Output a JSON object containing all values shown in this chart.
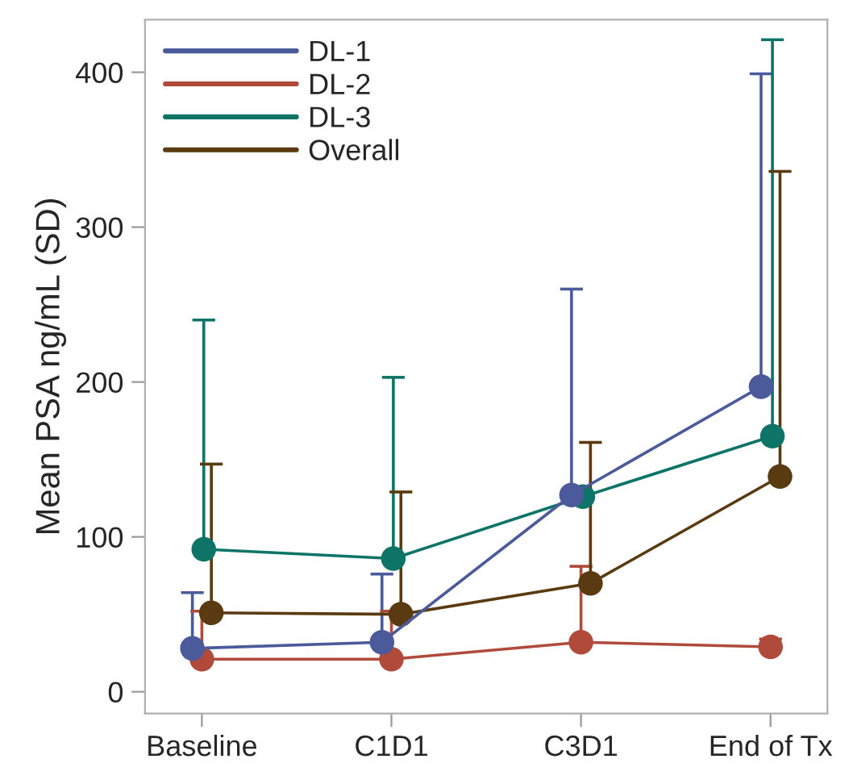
{
  "chart_data": {
    "type": "line",
    "ylabel": "Mean PSA ng/mL (SD)",
    "categories": [
      "Baseline",
      "C1D1",
      "C3D1",
      "End of Tx"
    ],
    "ylim": [
      -14,
      434
    ],
    "yticks": [
      0,
      100,
      200,
      300,
      400
    ],
    "grid": false,
    "legend": "top left",
    "marker": "circle",
    "line_style": "solid",
    "series": [
      {
        "name": "DL-1",
        "color": "#4a5a9a",
        "values": [
          28,
          32,
          127,
          197
        ],
        "errors": [
          [
            28,
            64
          ],
          [
            32,
            76
          ],
          [
            127,
            260
          ],
          [
            197,
            399
          ]
        ]
      },
      {
        "name": "DL-2",
        "color": "#b04a3a",
        "values": [
          21,
          21,
          32,
          29
        ],
        "errors": [
          [
            21,
            52
          ],
          [
            21,
            52
          ],
          [
            32,
            81
          ],
          [
            29,
            34
          ]
        ]
      },
      {
        "name": "DL-3",
        "color": "#0e7468",
        "values": [
          92,
          86,
          126,
          165
        ],
        "errors": [
          [
            92,
            240
          ],
          [
            86,
            203
          ],
          null,
          [
            165,
            421
          ]
        ]
      },
      {
        "name": "Overall",
        "color": "#5a3a10",
        "values": [
          51,
          50,
          70,
          139
        ],
        "errors": [
          [
            51,
            147
          ],
          [
            50,
            129
          ],
          [
            70,
            161
          ],
          [
            139,
            336
          ]
        ]
      }
    ]
  }
}
